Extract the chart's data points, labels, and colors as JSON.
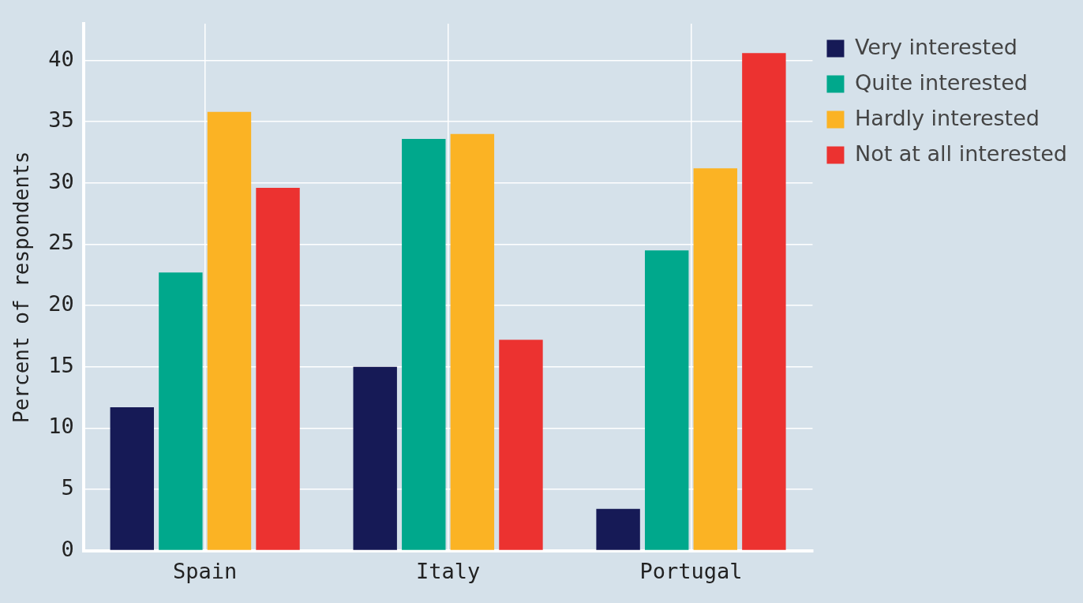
{
  "chart_data": {
    "type": "bar",
    "ylabel": "Percent of respondents",
    "categories": [
      "Spain",
      "Italy",
      "Portugal"
    ],
    "series": [
      {
        "name": "Very interested",
        "color": "#161a56",
        "values": [
          11.7,
          15.0,
          3.4
        ]
      },
      {
        "name": "Quite interested",
        "color": "#00a88c",
        "values": [
          22.7,
          33.6,
          24.5
        ]
      },
      {
        "name": "Hardly interested",
        "color": "#fbb324",
        "values": [
          35.8,
          34.0,
          31.2
        ]
      },
      {
        "name": "Not at all interested",
        "color": "#ec3230",
        "values": [
          29.6,
          17.2,
          40.6
        ]
      }
    ],
    "ylim": [
      0,
      43
    ],
    "yticks": [
      0,
      5,
      10,
      15,
      20,
      25,
      30,
      35,
      40
    ],
    "grid": true,
    "legend": "top right"
  }
}
